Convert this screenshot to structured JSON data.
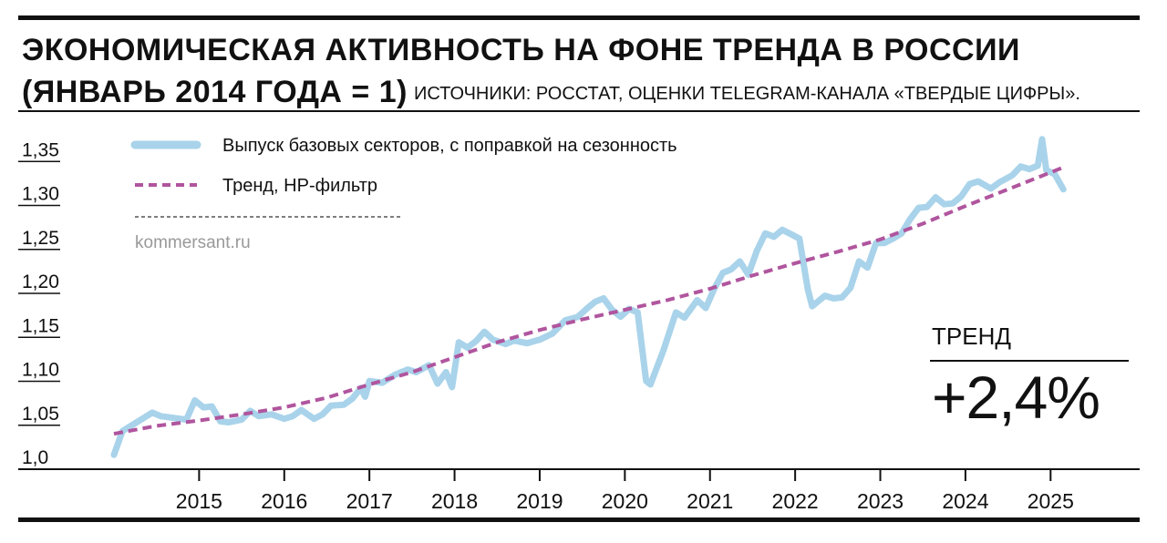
{
  "header": {
    "title_line1": "ЭКОНОМИЧЕСКАЯ АКТИВНОСТЬ НА ФОНЕ ТРЕНДА В РОССИИ",
    "title_line2": "(ЯНВАРЬ 2014 ГОДА = 1)",
    "source": "ИСТОЧНИКИ: РОССТАТ, ОЦЕНКИ TELEGRAM-КАНАЛА «ТВЕРДЫЕ ЦИФРЫ»."
  },
  "credit": "kommersant.ru",
  "trend_box": {
    "label": "ТРЕНД",
    "value": "+2,4%"
  },
  "colors": {
    "output": "#a9d3ea",
    "trend": "#b0559e",
    "axis": "#111111"
  },
  "chart_data": {
    "type": "line",
    "title": "ЭКОНОМИЧЕСКАЯ АКТИВНОСТЬ НА ФОНЕ ТРЕНДА В РОССИИ (ЯНВАРЬ 2014 ГОДА = 1)",
    "xlabel": "",
    "ylabel": "",
    "xlim": [
      2014.0,
      2025.35
    ],
    "ylim": [
      1.0,
      1.37
    ],
    "y_ticks": [
      1.0,
      1.05,
      1.1,
      1.15,
      1.2,
      1.25,
      1.3,
      1.35
    ],
    "y_tick_labels": [
      "1,0",
      "1,05",
      "1,10",
      "1,15",
      "1,20",
      "1,25",
      "1,30",
      "1,35"
    ],
    "x_ticks": [
      2015,
      2016,
      2017,
      2018,
      2019,
      2020,
      2021,
      2022,
      2023,
      2024,
      2025
    ],
    "x_tick_labels": [
      "2015",
      "2016",
      "2017",
      "2018",
      "2019",
      "2020",
      "2021",
      "2022",
      "2023",
      "2024",
      "2025"
    ],
    "legend_position": "top-left",
    "series": [
      {
        "name": "Выпуск базовых секторов, с поправкой на сезонность",
        "style": "solid",
        "x": [
          2014.0,
          2014.1,
          2014.25,
          2014.35,
          2014.45,
          2014.55,
          2014.7,
          2014.85,
          2014.95,
          2015.05,
          2015.15,
          2015.25,
          2015.35,
          2015.5,
          2015.6,
          2015.7,
          2015.85,
          2016.0,
          2016.1,
          2016.2,
          2016.35,
          2016.45,
          2016.55,
          2016.7,
          2016.8,
          2016.9,
          2016.95,
          2017.0,
          2017.15,
          2017.3,
          2017.45,
          2017.55,
          2017.7,
          2017.8,
          2017.9,
          2017.97,
          2018.05,
          2018.15,
          2018.25,
          2018.35,
          2018.45,
          2018.6,
          2018.7,
          2018.85,
          2019.0,
          2019.15,
          2019.3,
          2019.45,
          2019.55,
          2019.65,
          2019.75,
          2019.85,
          2019.95,
          2020.05,
          2020.15,
          2020.25,
          2020.3,
          2020.45,
          2020.6,
          2020.7,
          2020.85,
          2020.95,
          2021.05,
          2021.15,
          2021.25,
          2021.35,
          2021.45,
          2021.55,
          2021.65,
          2021.75,
          2021.85,
          2021.95,
          2022.05,
          2022.15,
          2022.2,
          2022.25,
          2022.35,
          2022.45,
          2022.55,
          2022.65,
          2022.75,
          2022.85,
          2022.95,
          2023.05,
          2023.15,
          2023.25,
          2023.35,
          2023.45,
          2023.55,
          2023.65,
          2023.75,
          2023.85,
          2023.95,
          2024.05,
          2024.15,
          2024.3,
          2024.4,
          2024.55,
          2024.65,
          2024.75,
          2024.85,
          2024.9,
          2024.95,
          2025.05,
          2025.15
        ],
        "y": [
          1.006,
          1.033,
          1.042,
          1.048,
          1.054,
          1.05,
          1.048,
          1.046,
          1.068,
          1.06,
          1.061,
          1.044,
          1.043,
          1.046,
          1.056,
          1.05,
          1.052,
          1.047,
          1.05,
          1.057,
          1.047,
          1.052,
          1.062,
          1.063,
          1.07,
          1.082,
          1.072,
          1.09,
          1.088,
          1.097,
          1.103,
          1.1,
          1.108,
          1.087,
          1.1,
          1.083,
          1.134,
          1.128,
          1.135,
          1.146,
          1.137,
          1.132,
          1.136,
          1.133,
          1.137,
          1.144,
          1.159,
          1.163,
          1.172,
          1.18,
          1.184,
          1.171,
          1.163,
          1.172,
          1.168,
          1.09,
          1.086,
          1.124,
          1.168,
          1.162,
          1.182,
          1.173,
          1.195,
          1.213,
          1.217,
          1.226,
          1.211,
          1.238,
          1.258,
          1.254,
          1.262,
          1.257,
          1.252,
          1.194,
          1.175,
          1.179,
          1.187,
          1.184,
          1.185,
          1.196,
          1.226,
          1.219,
          1.247,
          1.247,
          1.252,
          1.258,
          1.274,
          1.287,
          1.288,
          1.299,
          1.291,
          1.292,
          1.3,
          1.314,
          1.317,
          1.309,
          1.316,
          1.324,
          1.334,
          1.331,
          1.335,
          1.365,
          1.33,
          1.325,
          1.308
        ]
      },
      {
        "name": "Тренд, HP-фильтр",
        "style": "dashed",
        "x": [
          2014.0,
          2014.5,
          2015.0,
          2015.5,
          2016.0,
          2016.5,
          2017.0,
          2017.5,
          2018.0,
          2018.5,
          2019.0,
          2019.5,
          2020.0,
          2020.5,
          2021.0,
          2021.5,
          2022.0,
          2022.5,
          2023.0,
          2023.5,
          2024.0,
          2024.5,
          2025.15
        ],
        "y": [
          1.03,
          1.039,
          1.045,
          1.052,
          1.06,
          1.071,
          1.086,
          1.1,
          1.117,
          1.134,
          1.148,
          1.16,
          1.171,
          1.182,
          1.195,
          1.21,
          1.224,
          1.237,
          1.251,
          1.269,
          1.289,
          1.308,
          1.333
        ]
      }
    ]
  }
}
